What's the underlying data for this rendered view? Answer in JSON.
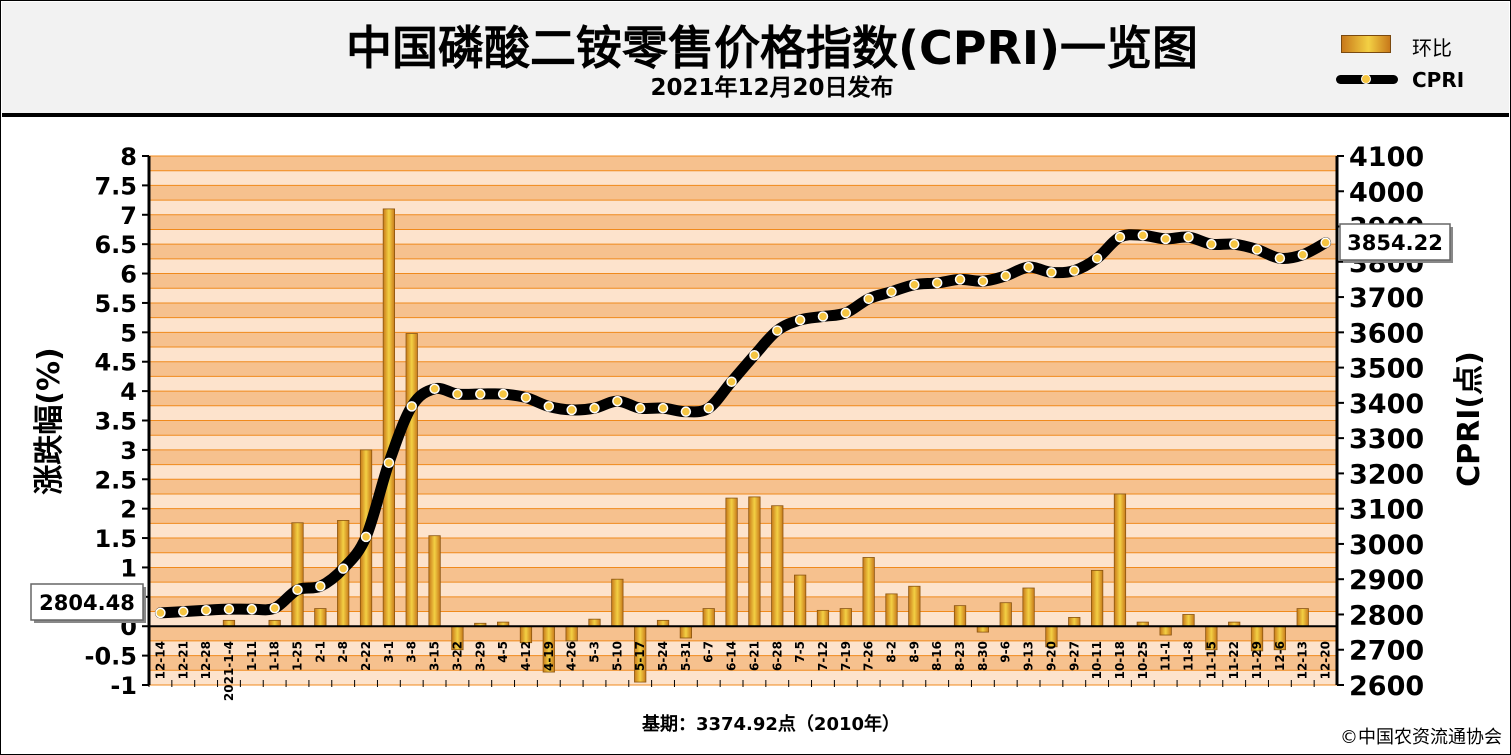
{
  "header": {
    "title": "中国磷酸二铵零售价格指数(CPRI)一览图",
    "subtitle": "2021年12月20日发布"
  },
  "legend": {
    "mom_label": "环比",
    "cpri_label": "CPRI"
  },
  "footer": {
    "base_period": "基期：3374.92点（2010年）",
    "copyright": "©中国农资流通协会"
  },
  "colors": {
    "band_light": "#fde3cc",
    "band_dark": "#f6c18e",
    "gridline": "#f08a1c",
    "bar_edge": "#c8791a",
    "bar_mid": "#f3d044",
    "cpri_line": "#000000",
    "cpri_marker": "#f5c542"
  },
  "chart_data": {
    "type": "bar+line",
    "x_categories": [
      "12-14",
      "12-21",
      "12-28",
      "2021-1-4",
      "1-11",
      "1-18",
      "1-25",
      "2-1",
      "2-8",
      "2-22",
      "3-1",
      "3-8",
      "3-15",
      "3-22",
      "3-29",
      "4-5",
      "4-12",
      "4-19",
      "4-26",
      "5-3",
      "5-10",
      "5-17",
      "5-24",
      "5-31",
      "6-7",
      "6-14",
      "6-21",
      "6-28",
      "7-5",
      "7-12",
      "7-19",
      "7-26",
      "8-2",
      "8-9",
      "8-16",
      "8-23",
      "8-30",
      "9-6",
      "9-13",
      "9-20",
      "9-27",
      "10-11",
      "10-18",
      "10-25",
      "11-1",
      "11-8",
      "11-15",
      "11-22",
      "11-29",
      "12-6",
      "12-13",
      "12-20"
    ],
    "series": [
      {
        "name": "环比",
        "type": "bar",
        "axis": "left",
        "values": [
          0,
          0,
          0,
          0.1,
          0,
          0.1,
          1.76,
          0.3,
          1.8,
          3.0,
          7.1,
          4.98,
          1.54,
          -0.4,
          0.05,
          0.07,
          -0.28,
          -0.78,
          -0.25,
          0.12,
          0.8,
          -0.95,
          0.1,
          -0.2,
          0.3,
          2.18,
          2.2,
          2.05,
          0.87,
          0.27,
          0.3,
          1.17,
          0.55,
          0.68,
          0,
          0.35,
          -0.1,
          0.4,
          0.65,
          -0.35,
          0.15,
          0.95,
          2.25,
          0.07,
          -0.15,
          0.2,
          -0.4,
          0.07,
          -0.42,
          -0.4,
          0.3,
          0
        ]
      },
      {
        "name": "CPRI",
        "type": "line",
        "axis": "right",
        "values": [
          2804.48,
          2808,
          2812,
          2815,
          2815,
          2818,
          2870,
          2880,
          2930,
          3020,
          3230,
          3390,
          3440,
          3425,
          3425,
          3425,
          3415,
          3390,
          3380,
          3385,
          3405,
          3385,
          3385,
          3375,
          3385,
          3460,
          3535,
          3605,
          3635,
          3645,
          3655,
          3695,
          3715,
          3735,
          3740,
          3750,
          3745,
          3760,
          3785,
          3770,
          3775,
          3810,
          3870,
          3875,
          3865,
          3870,
          3850,
          3850,
          3835,
          3810,
          3820,
          3854.22
        ]
      }
    ],
    "y_left": {
      "label": "涨跌幅(%)",
      "min": -1,
      "max": 8,
      "ticks": [
        "-1",
        "-0.5",
        "0",
        "0.5",
        "1",
        "1.5",
        "2",
        "2.5",
        "3",
        "3.5",
        "4",
        "4.5",
        "5",
        "5.5",
        "6",
        "6.5",
        "7",
        "7.5",
        "8"
      ]
    },
    "y_right": {
      "label": "CPRI(点)",
      "min": 2600,
      "max": 4100,
      "ticks": [
        "2600",
        "2700",
        "2800",
        "2900",
        "3000",
        "3100",
        "3200",
        "3300",
        "3400",
        "3500",
        "3600",
        "3700",
        "3800",
        "3900",
        "4000",
        "4100"
      ]
    },
    "annotations": {
      "start_value": "2804.48",
      "end_value": "3854.22"
    },
    "grid": true
  }
}
